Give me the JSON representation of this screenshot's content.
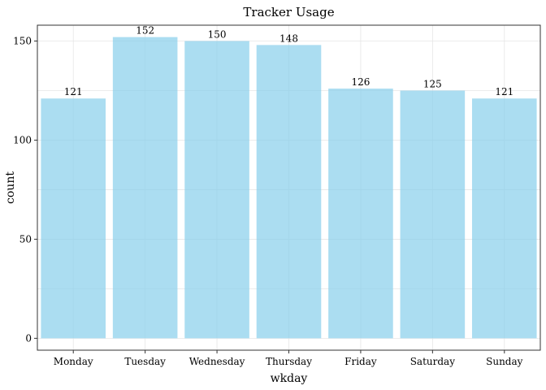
{
  "chart_data": {
    "type": "bar",
    "title": "Tracker Usage",
    "xlabel": "wkday",
    "ylabel": "count",
    "categories": [
      "Monday",
      "Tuesday",
      "Wednesday",
      "Thursday",
      "Friday",
      "Saturday",
      "Sunday"
    ],
    "values": [
      121,
      152,
      150,
      148,
      126,
      125,
      121
    ],
    "data_labels": [
      "121",
      "152",
      "150",
      "148",
      "126",
      "125",
      "121"
    ],
    "ylim": [
      -6,
      158
    ],
    "yticks": [
      0,
      50,
      100,
      150
    ],
    "ytick_labels": [
      "0",
      "50",
      "100",
      "150"
    ],
    "bar_color": "#87CEEB",
    "bar_opacity": 0.7,
    "grid": true,
    "legend": "none"
  }
}
